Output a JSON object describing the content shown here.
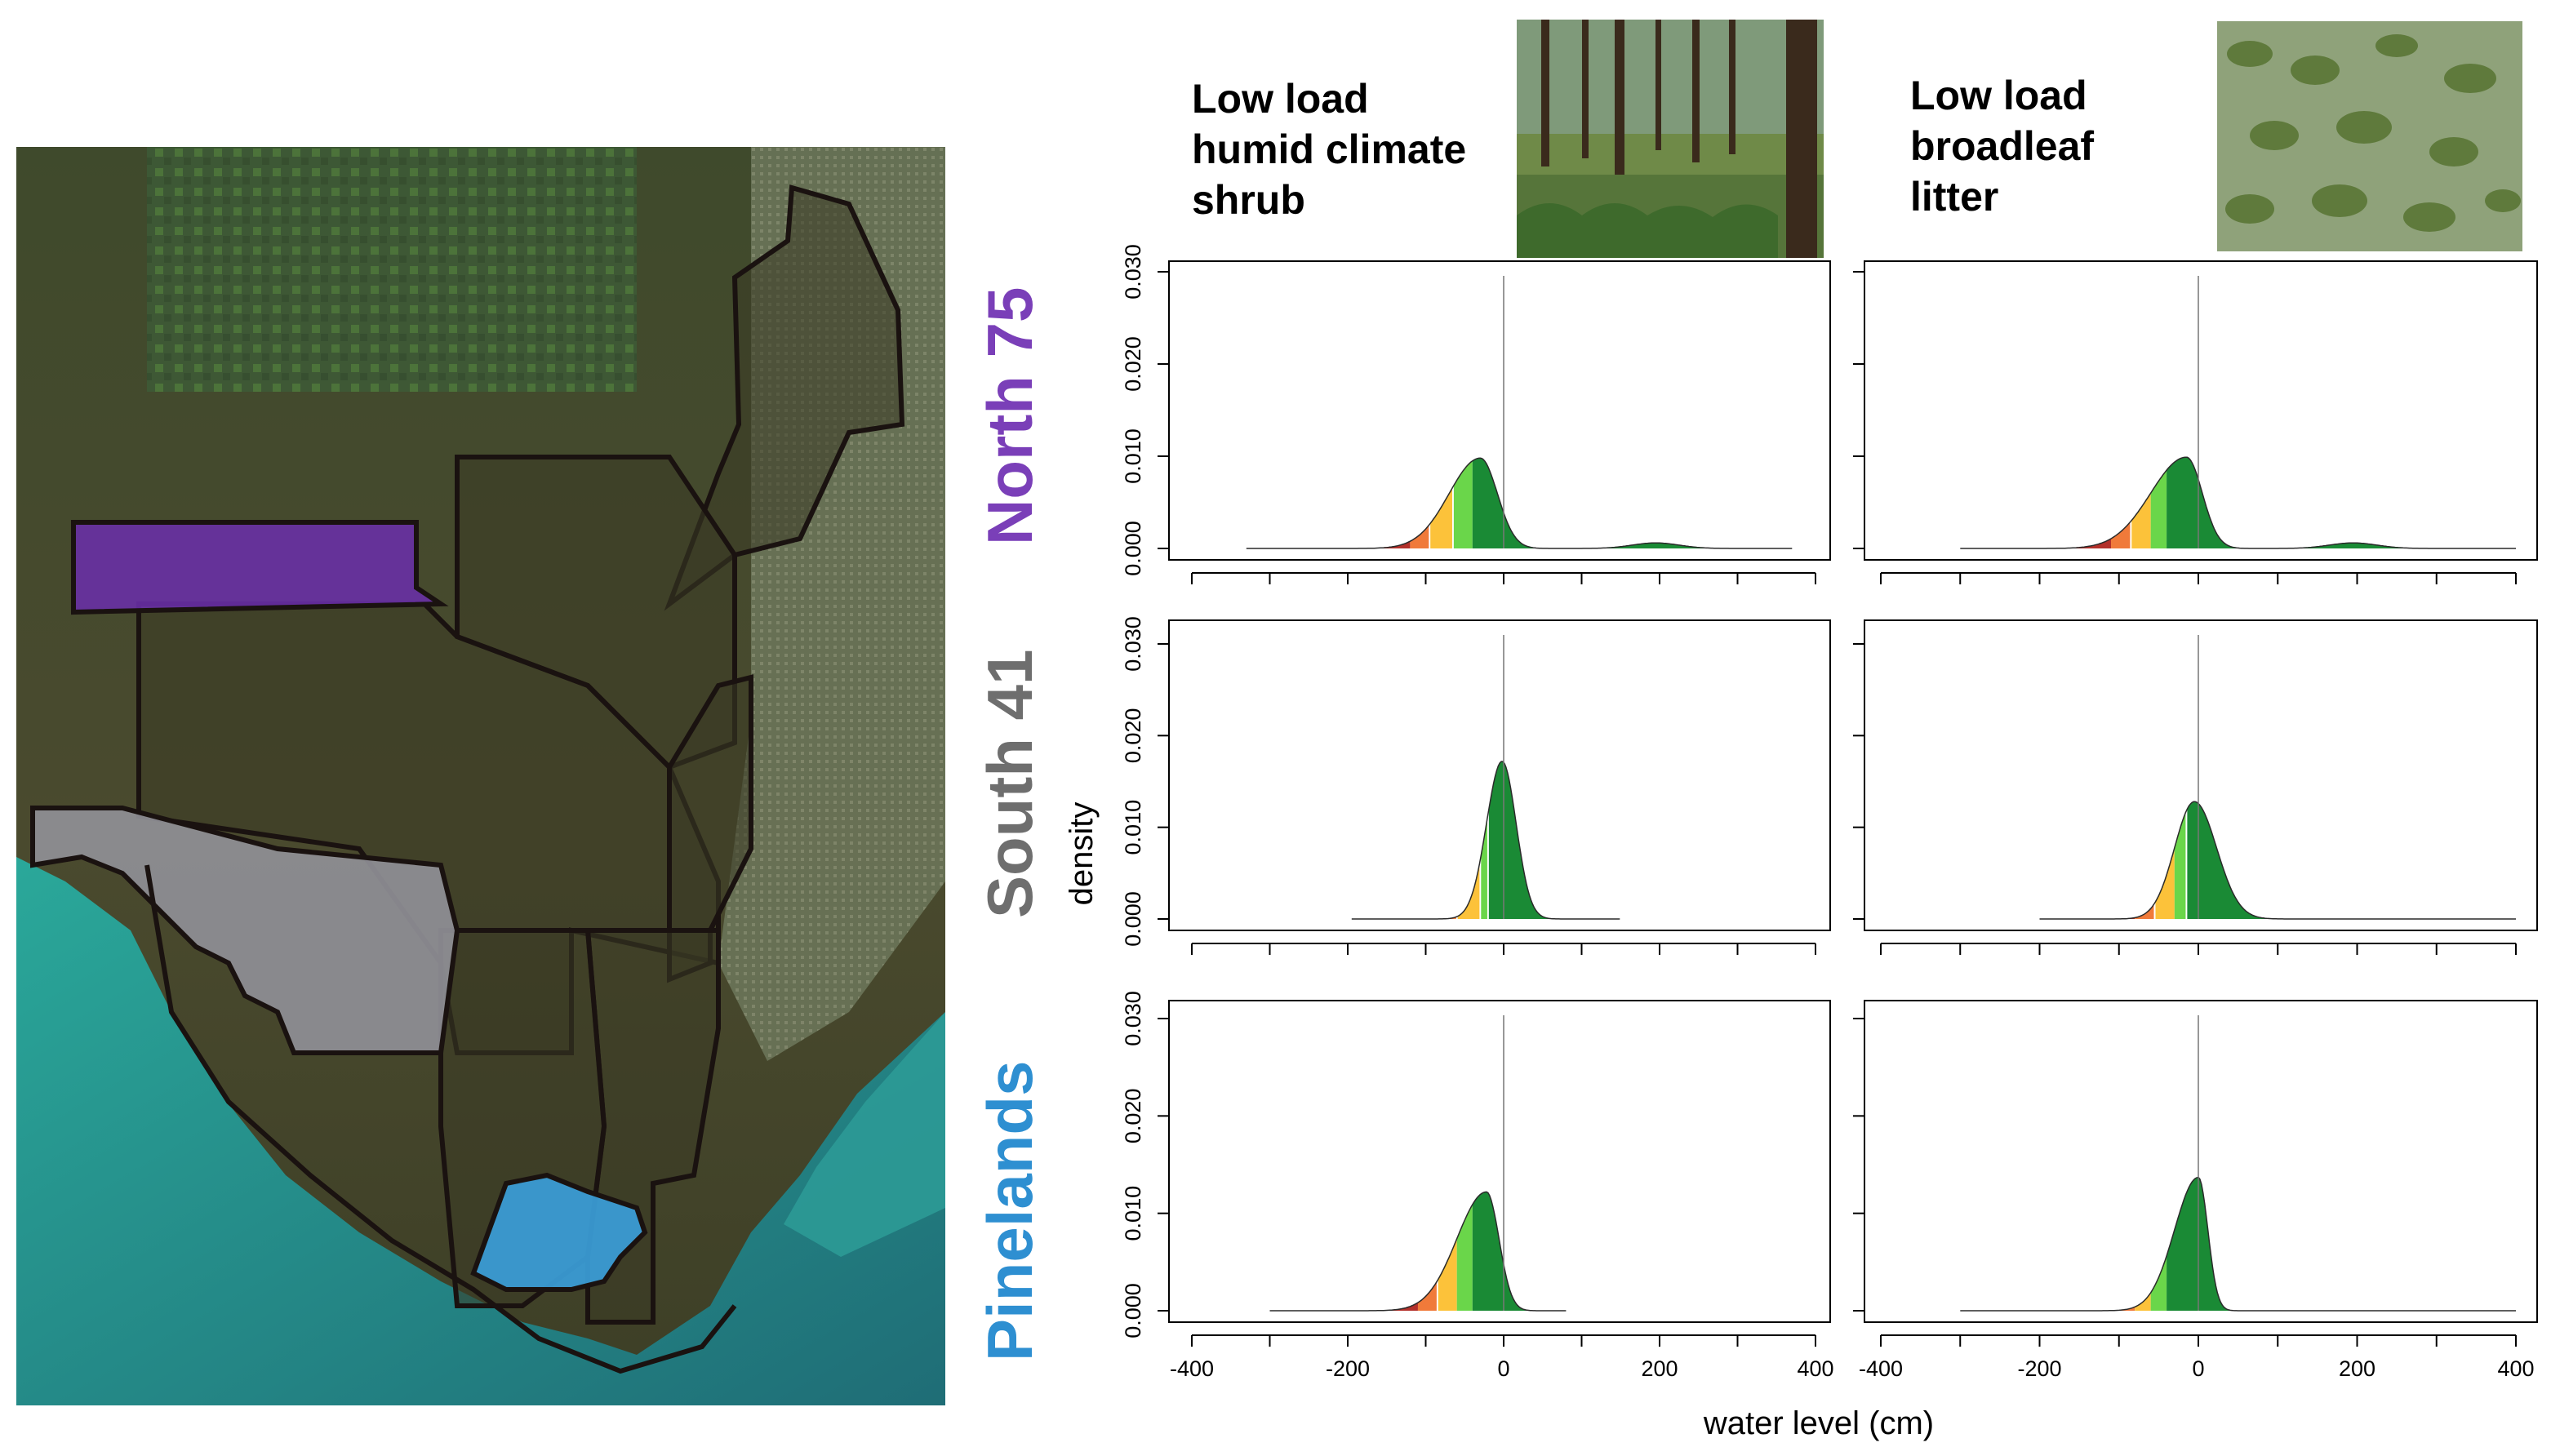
{
  "figure": {
    "map_alt": "Satellite map of South Florida fire regions",
    "x_axis_label": "water level (cm)",
    "y_axis_label": "density"
  },
  "columns": [
    {
      "title": "Low load\nhumid climate\nshrub",
      "photo": "pine-savanna-photo"
    },
    {
      "title": "Low load\nbroadleaf\nlitter",
      "photo": "marsh-aerial-photo"
    }
  ],
  "rows": [
    {
      "label": "North 75",
      "color": "#7a3fb8"
    },
    {
      "label": "South 41",
      "color": "#6e6e6e"
    },
    {
      "label": "Pinelands",
      "color": "#2e8fd1"
    }
  ],
  "colors": {
    "map_north75": "#6a2fa8",
    "map_south41": "#8f8f96",
    "map_pinelands": "#3a9bd4",
    "band_red": "#b3302a",
    "band_orange": "#f07a3a",
    "band_yellow": "#fcc23a",
    "band_lightgreen": "#6ad64a",
    "band_green": "#1a8a35"
  },
  "chart_data": {
    "type": "area",
    "xlabel": "water level (cm)",
    "ylabel": "density",
    "xlim": [
      -400,
      400
    ],
    "ylim": [
      0,
      0.03
    ],
    "xticks": [
      -400,
      -200,
      0,
      200,
      400
    ],
    "yticks": [
      0.0,
      0.01,
      0.02,
      0.03
    ],
    "ytick_labels": [
      "0.000",
      "0.010",
      "0.020",
      "0.030"
    ],
    "reference_line_x": 0,
    "band_legend": [
      "red",
      "orange",
      "yellow",
      "light green",
      "green"
    ],
    "panels": [
      {
        "row": "North 75",
        "column": "Low load humid climate shrub",
        "peak_x": -30,
        "peak_y": 0.0098,
        "sd_left": 40,
        "sd_right": 22,
        "range": [
          -330,
          370
        ],
        "bands": [
          -120,
          -95,
          -65,
          -40,
          -20
        ],
        "secondary": {
          "x": 195,
          "y": 0.0006,
          "sd": 30
        }
      },
      {
        "row": "North 75",
        "column": "Low load broadleaf litter",
        "peak_x": -15,
        "peak_y": 0.0099,
        "sd_left": 45,
        "sd_right": 20,
        "range": [
          -300,
          400
        ],
        "bands": [
          -110,
          -85,
          -60,
          -40,
          -20
        ],
        "secondary": {
          "x": 195,
          "y": 0.0006,
          "sd": 30
        }
      },
      {
        "row": "South 41",
        "column": "Low load humid climate shrub",
        "peak_x": -2,
        "peak_y": 0.0172,
        "sd_left": 20,
        "sd_right": 18,
        "range": [
          -195,
          150
        ],
        "bands": [
          -80,
          -60,
          -30,
          -20,
          -10
        ],
        "secondary": null
      },
      {
        "row": "South 41",
        "column": "Low load broadleaf litter",
        "peak_x": -5,
        "peak_y": 0.0128,
        "sd_left": 25,
        "sd_right": 28,
        "range": [
          -200,
          400
        ],
        "bands": [
          -80,
          -55,
          -30,
          -15,
          0
        ],
        "secondary": null
      },
      {
        "row": "Pinelands",
        "column": "Low load humid climate shrub",
        "peak_x": -22,
        "peak_y": 0.0122,
        "sd_left": 38,
        "sd_right": 16,
        "range": [
          -300,
          80
        ],
        "bands": [
          -110,
          -85,
          -60,
          -40,
          -20
        ],
        "secondary": null
      },
      {
        "row": "Pinelands",
        "column": "Low load broadleaf litter",
        "peak_x": 0,
        "peak_y": 0.0137,
        "sd_left": 30,
        "sd_right": 12,
        "range": [
          -300,
          400
        ],
        "bands": [
          -105,
          -80,
          -60,
          -40,
          -20
        ],
        "secondary": null
      }
    ]
  }
}
